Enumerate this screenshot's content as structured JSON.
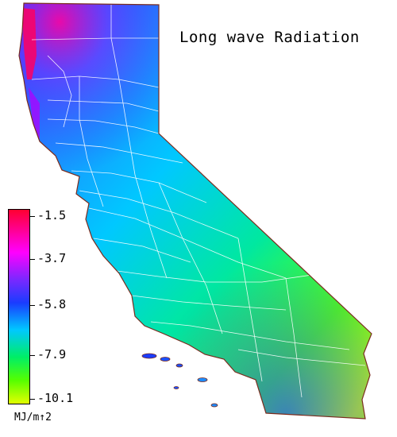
{
  "title": "Long wave Radiation",
  "legend": {
    "ticks": [
      "-1.5",
      "-3.7",
      "-5.8",
      "-7.9",
      "-10.1"
    ],
    "unit": "MJ/m↑2",
    "colors": {
      "max": "#ff0030",
      "upper": "#ff00ff",
      "upper_mid": "#7a28ff",
      "mid": "#1a3cff",
      "lower_mid": "#00c8ff",
      "lower": "#00ee66",
      "low": "#55ff00",
      "min": "#e2ff00"
    }
  }
}
